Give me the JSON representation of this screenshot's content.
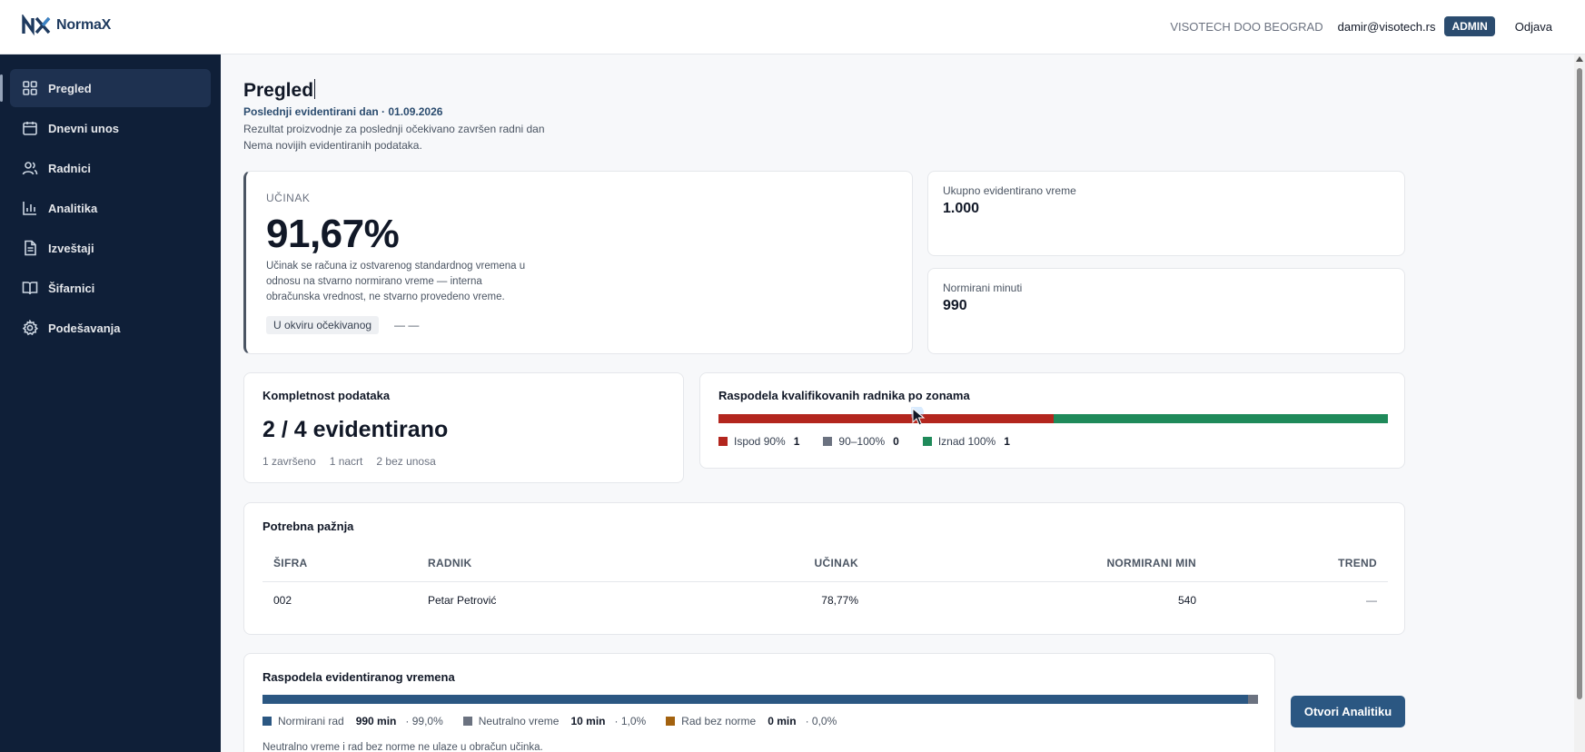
{
  "header": {
    "logo_text": "NormaX",
    "company": "VISOTECH DOO BEOGRAD",
    "email": "damir@visotech.rs",
    "role": "ADMIN",
    "logout": "Odjava"
  },
  "sidebar": {
    "items": [
      {
        "label": "Pregled",
        "icon": "grid-icon",
        "active": true
      },
      {
        "label": "Dnevni unos",
        "icon": "calendar-icon",
        "active": false
      },
      {
        "label": "Radnici",
        "icon": "users-icon",
        "active": false
      },
      {
        "label": "Analitika",
        "icon": "bar-chart-icon",
        "active": false
      },
      {
        "label": "Izveštaji",
        "icon": "document-icon",
        "active": false
      },
      {
        "label": "Šifarnici",
        "icon": "book-icon",
        "active": false
      },
      {
        "label": "Podešavanja",
        "icon": "gear-icon",
        "active": false
      }
    ]
  },
  "page": {
    "title": "Pregled",
    "last_day": "Poslednji evidentirani dan · 01.09.2026",
    "subtitle1": "Rezultat proizvodnje za poslednji očekivano završen radni dan",
    "subtitle2": "Nema novijih evidentiranih podataka."
  },
  "ucinak": {
    "label": "UČINAK",
    "value": "91,67%",
    "description": "Učinak se računa iz ostvarenog standardnog vremena u odnosu na stvarno normirano vreme — interna obračunska vrednost, ne stvarno provedeno vreme.",
    "badge": "U okviru očekivanog",
    "dash": "— —"
  },
  "stats": {
    "total_time_label": "Ukupno evidentirano vreme",
    "total_time_value": "1.000",
    "norm_minutes_label": "Normirani minuti",
    "norm_minutes_value": "990"
  },
  "completeness": {
    "title": "Kompletnost podataka",
    "value": "2 / 4 evidentirano",
    "done": "1 završeno",
    "draft": "1 nacrt",
    "none": "2 bez unosa"
  },
  "zones": {
    "title": "Raspodela kvalifikovanih radnika po zonama",
    "items": [
      {
        "label": "Ispod 90%",
        "count": "1",
        "value": 1,
        "color": "#b3261e"
      },
      {
        "label": "90–100%",
        "count": "0",
        "value": 0,
        "color": "#6b7280"
      },
      {
        "label": "Iznad 100%",
        "count": "1",
        "value": 1,
        "color": "#1f8a5a"
      }
    ]
  },
  "attention": {
    "title": "Potrebna pažnja",
    "columns": [
      "ŠIFRA",
      "RADNIK",
      "UČINAK",
      "NORMIRANI MIN",
      "TREND"
    ],
    "rows": [
      {
        "code": "002",
        "worker": "Petar Petrović",
        "efficiency": "78,77%",
        "norm_min": "540",
        "trend": "—"
      }
    ]
  },
  "time_distribution": {
    "title": "Raspodela evidentiranog vremena",
    "items": [
      {
        "label": "Normirani rad",
        "amount": "990 min",
        "pct": "· 99,0%",
        "value": 99.0,
        "color": "#2b5782"
      },
      {
        "label": "Neutralno vreme",
        "amount": "10 min",
        "pct": "· 1,0%",
        "value": 1.0,
        "color": "#6b7280"
      },
      {
        "label": "Rad bez norme",
        "amount": "0 min",
        "pct": "· 0,0%",
        "value": 0.0,
        "color": "#a3620f"
      }
    ],
    "note": "Neutralno vreme i rad bez norme ne ulaze u obračun učinka.",
    "button": "Otvori Analitiku"
  }
}
